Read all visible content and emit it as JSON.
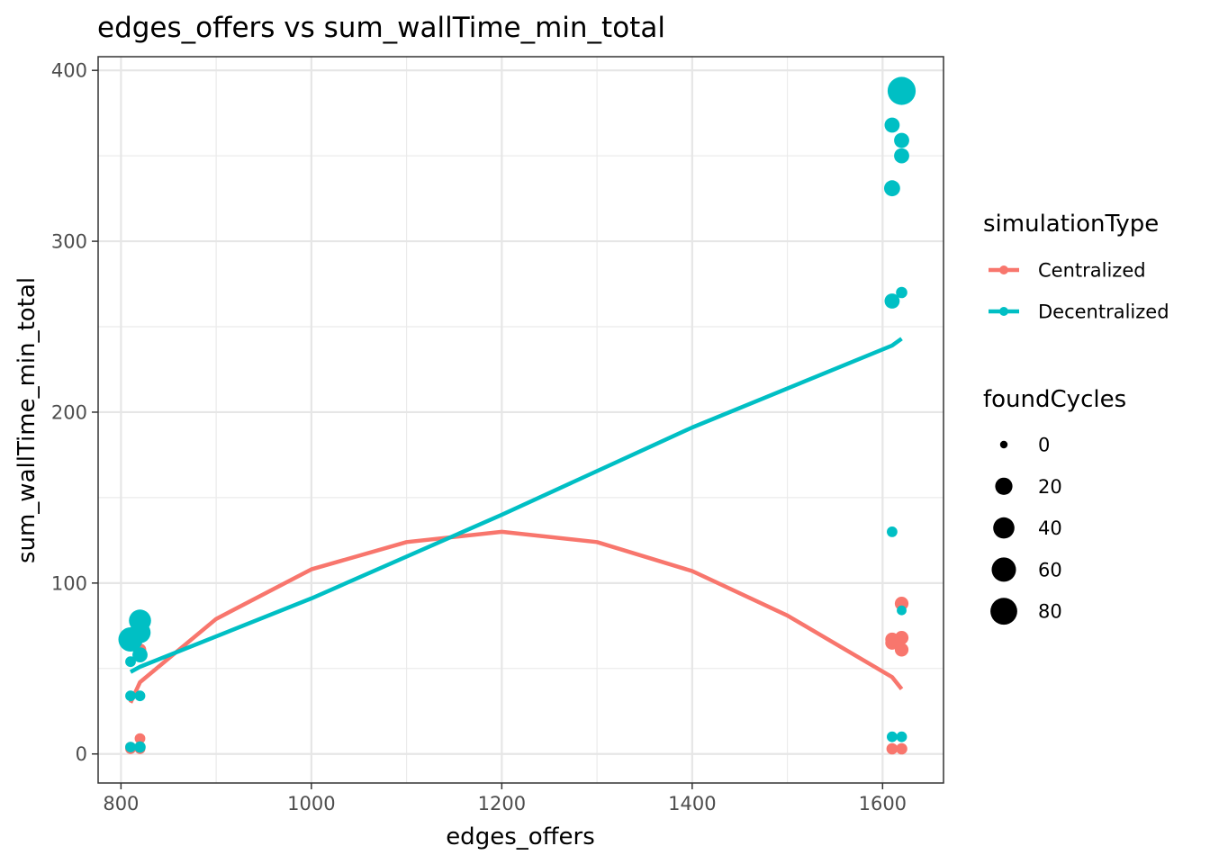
{
  "chart_data": {
    "type": "scatter",
    "title": "edges_offers  vs  sum_wallTime_min_total",
    "xlabel": "edges_offers",
    "ylabel": "sum_wallTime_min_total",
    "xlim": [
      776,
      1664
    ],
    "ylim": [
      -17,
      408
    ],
    "x_ticks": [
      800,
      1000,
      1200,
      1400,
      1600
    ],
    "y_ticks": [
      0,
      100,
      200,
      300,
      400
    ],
    "grid": true,
    "legend_placement": "right",
    "colors": {
      "Centralized": "#F8766D",
      "Decentralized": "#00BFC4"
    },
    "legend": {
      "color_title": "simulationType",
      "color_entries": [
        "Centralized",
        "Decentralized"
      ],
      "size_title": "foundCycles",
      "size_entries": [
        "0",
        "20",
        "40",
        "60",
        "80"
      ]
    },
    "series": [
      {
        "name": "Centralized",
        "points": [
          {
            "x": 810,
            "y": 3,
            "size": 2
          },
          {
            "x": 810,
            "y": 4,
            "size": 2
          },
          {
            "x": 820,
            "y": 3,
            "size": 2
          },
          {
            "x": 820,
            "y": 9,
            "size": 2
          },
          {
            "x": 820,
            "y": 61,
            "size": 5
          },
          {
            "x": 1610,
            "y": 3,
            "size": 3
          },
          {
            "x": 1620,
            "y": 3,
            "size": 3
          },
          {
            "x": 1610,
            "y": 65,
            "size": 8
          },
          {
            "x": 1610,
            "y": 67,
            "size": 8
          },
          {
            "x": 1620,
            "y": 68,
            "size": 8
          },
          {
            "x": 1620,
            "y": 61,
            "size": 8
          },
          {
            "x": 1620,
            "y": 88,
            "size": 8
          }
        ],
        "trend": [
          [
            810,
            30
          ],
          [
            820,
            42
          ],
          [
            900,
            79
          ],
          [
            1000,
            108
          ],
          [
            1100,
            124
          ],
          [
            1200,
            130
          ],
          [
            1300,
            124
          ],
          [
            1400,
            107
          ],
          [
            1500,
            81
          ],
          [
            1610,
            45
          ],
          [
            1620,
            38
          ]
        ]
      },
      {
        "name": "Decentralized",
        "points": [
          {
            "x": 810,
            "y": 4,
            "size": 2
          },
          {
            "x": 810,
            "y": 34,
            "size": 2
          },
          {
            "x": 810,
            "y": 54,
            "size": 2
          },
          {
            "x": 810,
            "y": 67,
            "size": 60
          },
          {
            "x": 820,
            "y": 4,
            "size": 3
          },
          {
            "x": 820,
            "y": 34,
            "size": 2
          },
          {
            "x": 820,
            "y": 58,
            "size": 12
          },
          {
            "x": 820,
            "y": 71,
            "size": 40
          },
          {
            "x": 820,
            "y": 78,
            "size": 45
          },
          {
            "x": 1610,
            "y": 10,
            "size": 2
          },
          {
            "x": 1620,
            "y": 10,
            "size": 2
          },
          {
            "x": 1610,
            "y": 130,
            "size": 2
          },
          {
            "x": 1620,
            "y": 84,
            "size": 1
          },
          {
            "x": 1610,
            "y": 265,
            "size": 12
          },
          {
            "x": 1620,
            "y": 270,
            "size": 3
          },
          {
            "x": 1610,
            "y": 331,
            "size": 15
          },
          {
            "x": 1620,
            "y": 350,
            "size": 12
          },
          {
            "x": 1620,
            "y": 359,
            "size": 12
          },
          {
            "x": 1610,
            "y": 368,
            "size": 12
          },
          {
            "x": 1620,
            "y": 388,
            "size": 90
          }
        ],
        "trend": [
          [
            810,
            48
          ],
          [
            820,
            51
          ],
          [
            1000,
            91
          ],
          [
            1200,
            140
          ],
          [
            1400,
            191
          ],
          [
            1610,
            239
          ],
          [
            1620,
            243
          ]
        ]
      }
    ]
  }
}
